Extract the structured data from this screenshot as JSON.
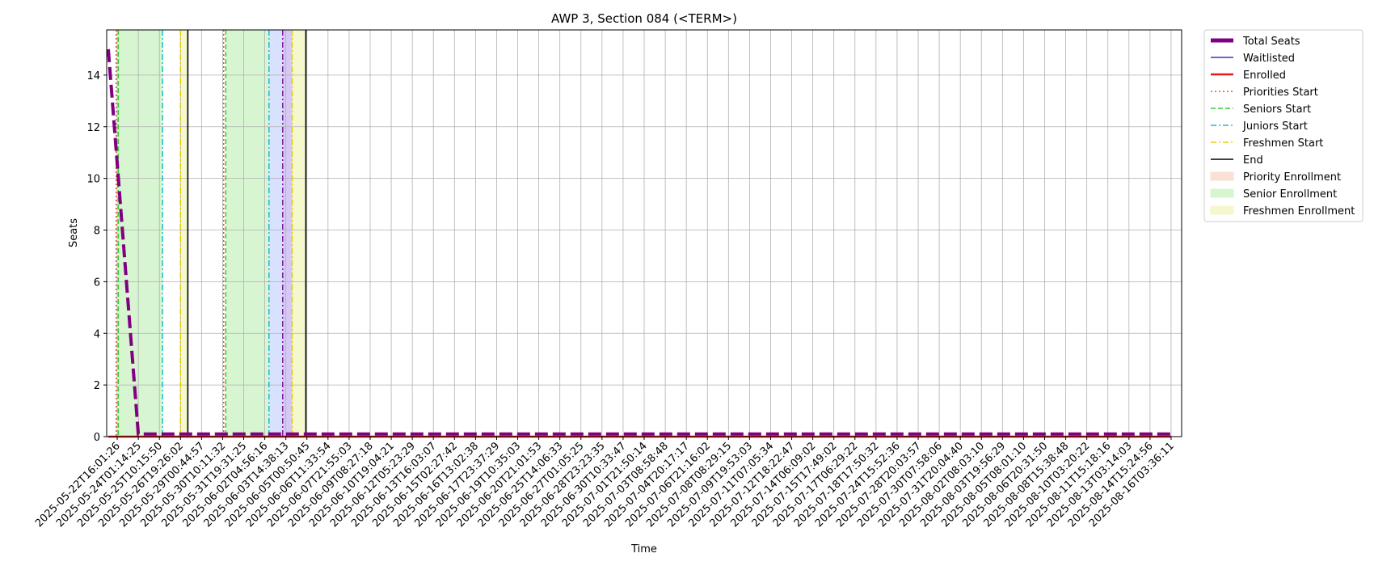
{
  "chart_data": {
    "type": "line",
    "title": "AWP 3, Section 084 (<TERM>)",
    "xlabel": "Time",
    "ylabel": "Seats",
    "ylim": [
      0,
      15.75
    ],
    "yticks": [
      0,
      2,
      4,
      6,
      8,
      10,
      12,
      14
    ],
    "grid": true,
    "legend_position": "outside-top-right",
    "x": [
      "2025-05-22T16:01:26",
      "2025-05-24T01:14:25",
      "2025-05-25T10:15:50",
      "2025-05-26T19:26:02",
      "2025-05-29T00:44:57",
      "2025-05-30T10:11:32",
      "2025-05-31T19:31:25",
      "2025-06-02T04:56:16",
      "2025-06-03T14:38:13",
      "2025-06-05T00:50:45",
      "2025-06-06T11:33:54",
      "2025-06-07T21:55:03",
      "2025-06-09T08:27:18",
      "2025-06-10T19:04:21",
      "2025-06-12T05:23:29",
      "2025-06-13T16:03:07",
      "2025-06-15T02:27:42",
      "2025-06-16T13:02:38",
      "2025-06-17T23:37:29",
      "2025-06-19T10:35:03",
      "2025-06-20T21:01:53",
      "2025-06-25T14:06:33",
      "2025-06-27T01:05:25",
      "2025-06-28T23:23:35",
      "2025-06-30T10:33:47",
      "2025-07-01T21:50:14",
      "2025-07-03T08:58:48",
      "2025-07-04T20:17:17",
      "2025-07-06T21:16:02",
      "2025-07-08T08:29:15",
      "2025-07-09T19:53:03",
      "2025-07-11T07:05:34",
      "2025-07-12T18:22:47",
      "2025-07-14T06:09:02",
      "2025-07-15T17:49:02",
      "2025-07-17T06:29:22",
      "2025-07-18T17:50:32",
      "2025-07-24T15:52:36",
      "2025-07-28T20:03:57",
      "2025-07-30T07:58:06",
      "2025-07-31T20:04:40",
      "2025-08-02T08:03:10",
      "2025-08-03T19:56:29",
      "2025-08-05T08:01:10",
      "2025-08-06T20:31:50",
      "2025-08-08T15:38:48",
      "2025-08-10T03:20:22",
      "2025-08-11T15:18:16",
      "2025-08-13T03:14:03",
      "2025-08-14T15:24:56",
      "2025-08-16T03:36:11"
    ],
    "series": [
      {
        "name": "Total Seats",
        "color": "#800080",
        "style": "dashed",
        "values": [
          15,
          0.1,
          0.1,
          0.1,
          0.1,
          0.1,
          0.1,
          0.1,
          0.1,
          0.1,
          0.1,
          0.1,
          0.1,
          0.1,
          0.1,
          0.1,
          0.1,
          0.1,
          0.1,
          0.1,
          0.1,
          0.1,
          0.1,
          0.1,
          0.1,
          0.1,
          0.1,
          0.1,
          0.1,
          0.1,
          0.1,
          0.1,
          0.1,
          0.1,
          0.1,
          0.1,
          0.1,
          0.1,
          0.1,
          0.1,
          0.1,
          0.1,
          0.1,
          0.1,
          0.1,
          0.1,
          0.1,
          0.1,
          0.1,
          0.1,
          0.1
        ]
      },
      {
        "name": "Waitlisted",
        "color": "#3333cc",
        "style": "solid",
        "values": [
          0,
          0,
          0,
          0,
          0,
          0,
          0,
          0,
          0,
          0,
          0,
          0,
          0,
          0,
          0,
          0,
          0,
          0,
          0,
          0,
          0,
          0,
          0,
          0,
          0,
          0,
          0,
          0,
          0,
          0,
          0,
          0,
          0,
          0,
          0,
          0,
          0,
          0,
          0,
          0,
          0,
          0,
          0,
          0,
          0,
          0,
          0,
          0,
          0,
          0,
          0
        ]
      },
      {
        "name": "Enrolled",
        "color": "#e31a1c",
        "style": "solid",
        "values": [
          0,
          0,
          0,
          0,
          0,
          0,
          0,
          0,
          0,
          0,
          0,
          0,
          0,
          0,
          0,
          0,
          0,
          0,
          0,
          0,
          0,
          0,
          0,
          0,
          0,
          0,
          0,
          0,
          0,
          0,
          0,
          0,
          0,
          0,
          0,
          0,
          0,
          0,
          0,
          0,
          0,
          0,
          0,
          0,
          0,
          0,
          0,
          0,
          0,
          0,
          0
        ]
      }
    ],
    "vlines": [
      {
        "name": "Priorities Start",
        "color": "#e8521c",
        "style": "dotted",
        "positions": [
          0.45,
          5.55
        ]
      },
      {
        "name": "Seniors Start",
        "color": "#33cc33",
        "style": "dashed",
        "positions": [
          0.55,
          5.65
        ]
      },
      {
        "name": "Juniors Start",
        "color": "#17becf",
        "style": "dashdot",
        "positions": [
          2.65,
          7.7
        ]
      },
      {
        "name": "Freshmen Start",
        "color": "#e0d000",
        "style": "dashdot",
        "positions": [
          3.5,
          8.8
        ]
      },
      {
        "name": "End",
        "color": "#000000",
        "style": "solid",
        "positions": [
          3.85,
          9.45
        ]
      },
      {
        "name": "",
        "color": "#7b1fa2",
        "style": "dashdot",
        "positions": [
          8.35
        ]
      }
    ],
    "shaded": [
      {
        "name": "Senior Enrollment",
        "color": "#d6f5d0",
        "ranges": [
          [
            0.55,
            2.65
          ],
          [
            5.65,
            7.7
          ]
        ]
      },
      {
        "name": "",
        "color": "#d8e2ff",
        "ranges": [
          [
            7.7,
            8.35
          ]
        ]
      },
      {
        "name": "",
        "color": "#d6c8f5",
        "ranges": [
          [
            8.35,
            8.8
          ]
        ]
      },
      {
        "name": "Freshmen Enrollment",
        "color": "#f5f8cc",
        "ranges": [
          [
            3.5,
            3.85
          ],
          [
            8.8,
            9.45
          ]
        ]
      }
    ],
    "legend": [
      {
        "label": "Total Seats",
        "kind": "thick-line",
        "color": "#800080"
      },
      {
        "label": "Waitlisted",
        "kind": "line",
        "color": "#3333cc",
        "dash": ""
      },
      {
        "label": "Enrolled",
        "kind": "line-bold",
        "color": "#e31a1c",
        "dash": ""
      },
      {
        "label": "Priorities Start",
        "kind": "line",
        "color": "#e8521c",
        "dash": "2,3"
      },
      {
        "label": "Seniors Start",
        "kind": "line",
        "color": "#33cc33",
        "dash": "6,3"
      },
      {
        "label": "Juniors Start",
        "kind": "line",
        "color": "#17becf",
        "dash": "7,3,2,3"
      },
      {
        "label": "Freshmen Start",
        "kind": "line",
        "color": "#e0d000",
        "dash": "7,3,2,3"
      },
      {
        "label": "End",
        "kind": "line",
        "color": "#000000",
        "dash": ""
      },
      {
        "label": "Priority Enrollment",
        "kind": "patch",
        "color": "#fbe0d6"
      },
      {
        "label": "Senior Enrollment",
        "kind": "patch",
        "color": "#d6f5d0"
      },
      {
        "label": "Freshmen Enrollment",
        "kind": "patch",
        "color": "#f5f8cc"
      }
    ]
  }
}
